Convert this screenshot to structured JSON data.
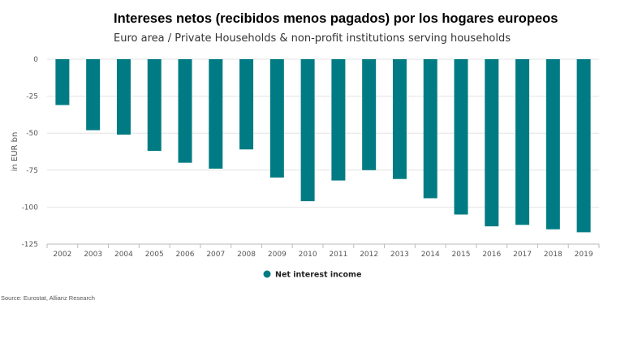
{
  "title": "Intereses netos (recibidos menos pagados) por los hogares europeos",
  "subtitle": "Euro area / Private Households & non-profit institutions serving households",
  "source": "Source: Eurostat, Allianz Research",
  "colors": {
    "bar": "#007b84",
    "grid": "#e4e4e4",
    "axis": "#bbbbbb"
  },
  "chart_data": {
    "type": "bar",
    "categories": [
      "2002",
      "2003",
      "2004",
      "2005",
      "2006",
      "2007",
      "2008",
      "2009",
      "2010",
      "2011",
      "2012",
      "2013",
      "2014",
      "2015",
      "2016",
      "2017",
      "2018",
      "2019"
    ],
    "series": [
      {
        "name": "Net interest income",
        "values": [
          -31,
          -48,
          -51,
          -62,
          -70,
          -74,
          -61,
          -80,
          -96,
          -82,
          -75,
          -81,
          -94,
          -105,
          -113,
          -112,
          -115,
          -117
        ]
      }
    ],
    "ylabel": "in EUR bn",
    "xlabel": "",
    "ylim": [
      -125,
      0
    ],
    "yticks": [
      0,
      -25,
      -50,
      -75,
      -100,
      -125
    ],
    "ytick_labels": [
      "0",
      "-25",
      "-50",
      "-75",
      "-100",
      "-125"
    ],
    "grid": true,
    "legend": "bottom-center"
  }
}
